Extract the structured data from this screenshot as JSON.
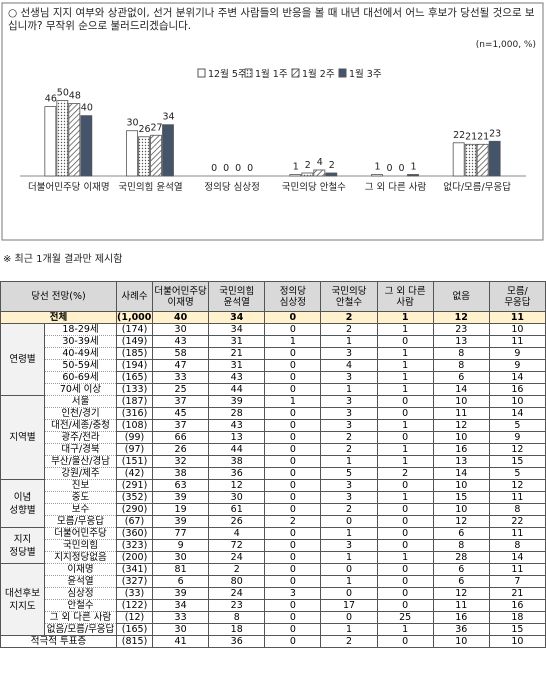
{
  "chart_data": {
    "type": "bar",
    "title": "○ 선생님 지지 여부와 상관없이, 선거 분위기나 주변 사람들의 반응을 볼 때 내년 대선에서 어느 후보가 당선될 것으로 보십니까? 무작위 순으로 불러드리겠습니다.",
    "subtitle": "(n=1,000, %)",
    "categories": [
      "더불어민주당 이재명",
      "국민의힘 윤석열",
      "정의당 심상정",
      "국민의당 안철수",
      "그 외 다른 사람",
      "없다/모름/무응답"
    ],
    "series": [
      {
        "name": "12월 5주",
        "color": "#ffffff",
        "pattern": "none",
        "values": [
          46,
          30,
          0,
          1,
          1,
          22
        ]
      },
      {
        "name": "1월 1주",
        "color": "#ffffff",
        "pattern": "dots",
        "values": [
          50,
          26,
          0,
          2,
          0,
          21
        ]
      },
      {
        "name": "1월 2주",
        "color": "#ffffff",
        "pattern": "hatch",
        "values": [
          48,
          27,
          0,
          4,
          0,
          21
        ]
      },
      {
        "name": "1월 3주",
        "color": "#44546a",
        "pattern": "none",
        "values": [
          40,
          34,
          0,
          2,
          1,
          23
        ]
      }
    ],
    "ylim": [
      0,
      55
    ],
    "grid": false
  },
  "note": "※ 최근 1개월 결과만 제시함",
  "table": {
    "header": [
      "당선 전망(%)",
      "사례수",
      "더불어민주당\n이재명",
      "국민의힘\n윤석열",
      "정의당\n심상정",
      "국민의당\n안철수",
      "그 외 다른\n사람",
      "없음",
      "모름/\n무응답"
    ],
    "total": {
      "label": "전체",
      "n": "(1,000)",
      "values": [
        40,
        34,
        0,
        2,
        1,
        12,
        11
      ]
    },
    "groups": [
      {
        "label": "연령별",
        "rows": [
          {
            "label": "18-29세",
            "n": "(174)",
            "values": [
              30,
              34,
              0,
              2,
              1,
              23,
              10
            ]
          },
          {
            "label": "30-39세",
            "n": "(149)",
            "values": [
              43,
              31,
              1,
              1,
              0,
              13,
              11
            ]
          },
          {
            "label": "40-49세",
            "n": "(185)",
            "values": [
              58,
              21,
              0,
              3,
              1,
              8,
              9
            ]
          },
          {
            "label": "50-59세",
            "n": "(194)",
            "values": [
              47,
              31,
              0,
              4,
              1,
              8,
              9
            ]
          },
          {
            "label": "60-69세",
            "n": "(165)",
            "values": [
              33,
              43,
              0,
              3,
              1,
              6,
              14
            ]
          },
          {
            "label": "70세 이상",
            "n": "(133)",
            "values": [
              25,
              44,
              0,
              1,
              1,
              14,
              16
            ]
          }
        ]
      },
      {
        "label": "지역별",
        "rows": [
          {
            "label": "서울",
            "n": "(187)",
            "values": [
              37,
              39,
              1,
              3,
              0,
              10,
              10
            ]
          },
          {
            "label": "인천/경기",
            "n": "(316)",
            "values": [
              45,
              28,
              0,
              3,
              0,
              11,
              14
            ]
          },
          {
            "label": "대전/세종/충청",
            "n": "(108)",
            "values": [
              37,
              43,
              0,
              3,
              1,
              12,
              5
            ]
          },
          {
            "label": "광주/전라",
            "n": "(99)",
            "values": [
              66,
              13,
              0,
              2,
              0,
              10,
              9
            ]
          },
          {
            "label": "대구/경북",
            "n": "(97)",
            "values": [
              26,
              44,
              0,
              2,
              1,
              16,
              12
            ]
          },
          {
            "label": "부산/울산/경남",
            "n": "(151)",
            "values": [
              32,
              38,
              0,
              1,
              1,
              13,
              15
            ]
          },
          {
            "label": "강원/제주",
            "n": "(42)",
            "values": [
              38,
              36,
              0,
              5,
              2,
              14,
              5
            ]
          }
        ]
      },
      {
        "label": "이념\n성향별",
        "rows": [
          {
            "label": "진보",
            "n": "(291)",
            "values": [
              63,
              12,
              0,
              3,
              0,
              10,
              12
            ]
          },
          {
            "label": "중도",
            "n": "(352)",
            "values": [
              39,
              30,
              0,
              3,
              1,
              15,
              11
            ]
          },
          {
            "label": "보수",
            "n": "(290)",
            "values": [
              19,
              61,
              0,
              2,
              0,
              10,
              8
            ]
          },
          {
            "label": "모름/무응답",
            "n": "(67)",
            "values": [
              39,
              26,
              2,
              0,
              0,
              12,
              22
            ]
          }
        ]
      },
      {
        "label": "지지\n정당별",
        "rows": [
          {
            "label": "더불어민주당",
            "n": "(360)",
            "values": [
              77,
              4,
              0,
              1,
              0,
              6,
              11
            ]
          },
          {
            "label": "국민의힘",
            "n": "(323)",
            "values": [
              9,
              72,
              0,
              3,
              0,
              8,
              8
            ]
          },
          {
            "label": "지지정당없음",
            "n": "(200)",
            "values": [
              30,
              24,
              0,
              1,
              1,
              28,
              14
            ]
          }
        ]
      },
      {
        "label": "대선후보\n지지도",
        "rows": [
          {
            "label": "이재명",
            "n": "(341)",
            "values": [
              81,
              2,
              0,
              0,
              0,
              6,
              11
            ]
          },
          {
            "label": "윤석열",
            "n": "(327)",
            "values": [
              6,
              80,
              0,
              1,
              0,
              6,
              7
            ]
          },
          {
            "label": "심상정",
            "n": "(33)",
            "values": [
              39,
              24,
              3,
              0,
              0,
              12,
              21
            ]
          },
          {
            "label": "안철수",
            "n": "(122)",
            "values": [
              34,
              23,
              0,
              17,
              0,
              11,
              16
            ]
          },
          {
            "label": "그 외 다른 사람",
            "n": "(12)",
            "values": [
              33,
              8,
              0,
              0,
              25,
              16,
              18
            ]
          },
          {
            "label": "없음/모름/무응답",
            "n": "(165)",
            "values": [
              30,
              18,
              0,
              1,
              1,
              36,
              15
            ]
          }
        ]
      }
    ],
    "footer": {
      "label": "적극적 투표층",
      "n": "(815)",
      "values": [
        41,
        36,
        0,
        2,
        0,
        10,
        10
      ]
    }
  }
}
